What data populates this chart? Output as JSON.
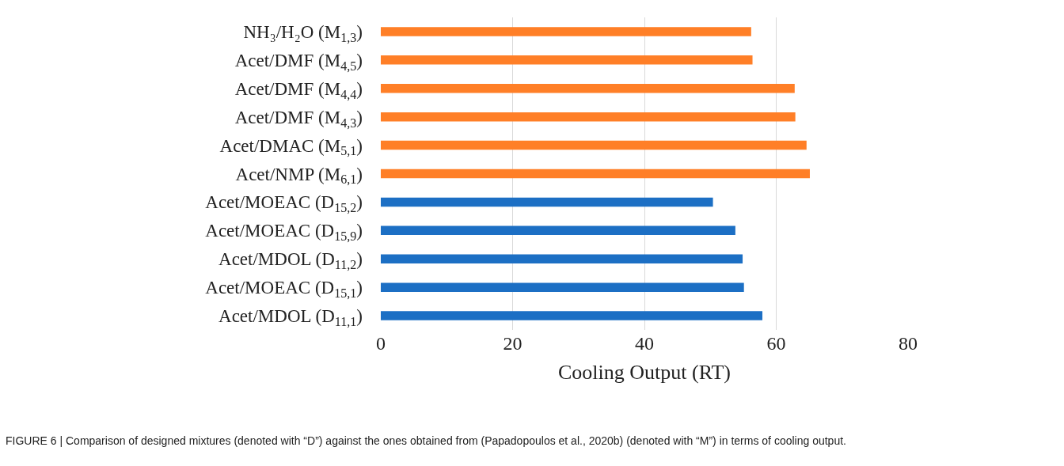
{
  "chart_data": {
    "type": "bar",
    "orientation": "horizontal",
    "categories": [
      "NH₃/H₂O (M$_{1,3}$)",
      "Acet/DMF (M$_{4,5}$)",
      "Acet/DMF (M$_{4,4}$)",
      "Acet/DMF (M$_{4,3}$)",
      "Acet/DMAC (M$_{5,1}$)",
      "Acet/NMP (M$_{6,1}$)",
      "Acet/MOEAC (D$_{15,2}$)",
      "Acet/MOEAC (D$_{15,9}$)",
      "Acet/MDOL (D$_{11,2}$)",
      "Acet/MOEAC (D$_{15,1}$)",
      "Acet/MDOL (D$_{11,1}$)"
    ],
    "values": [
      56.2,
      56.4,
      62.8,
      62.9,
      64.6,
      65.1,
      50.4,
      53.8,
      54.9,
      55.1,
      57.9
    ],
    "colors": [
      "#ff7f27",
      "#ff7f27",
      "#ff7f27",
      "#ff7f27",
      "#ff7f27",
      "#ff7f27",
      "#1c6fc4",
      "#1c6fc4",
      "#1c6fc4",
      "#1c6fc4",
      "#1c6fc4"
    ],
    "xlabel": "Cooling Output (RT)",
    "xlim": [
      0,
      80
    ],
    "xticks": [
      0,
      20,
      40,
      60,
      80
    ],
    "grid": "x",
    "annotations": [
      "FIGURE 6 | Comparison of designed mixtures (denoted with “D”) against the ones obtained from (Papadopoulos et al., 2020b) (denoted with “M”) in terms of cooling output."
    ]
  }
}
